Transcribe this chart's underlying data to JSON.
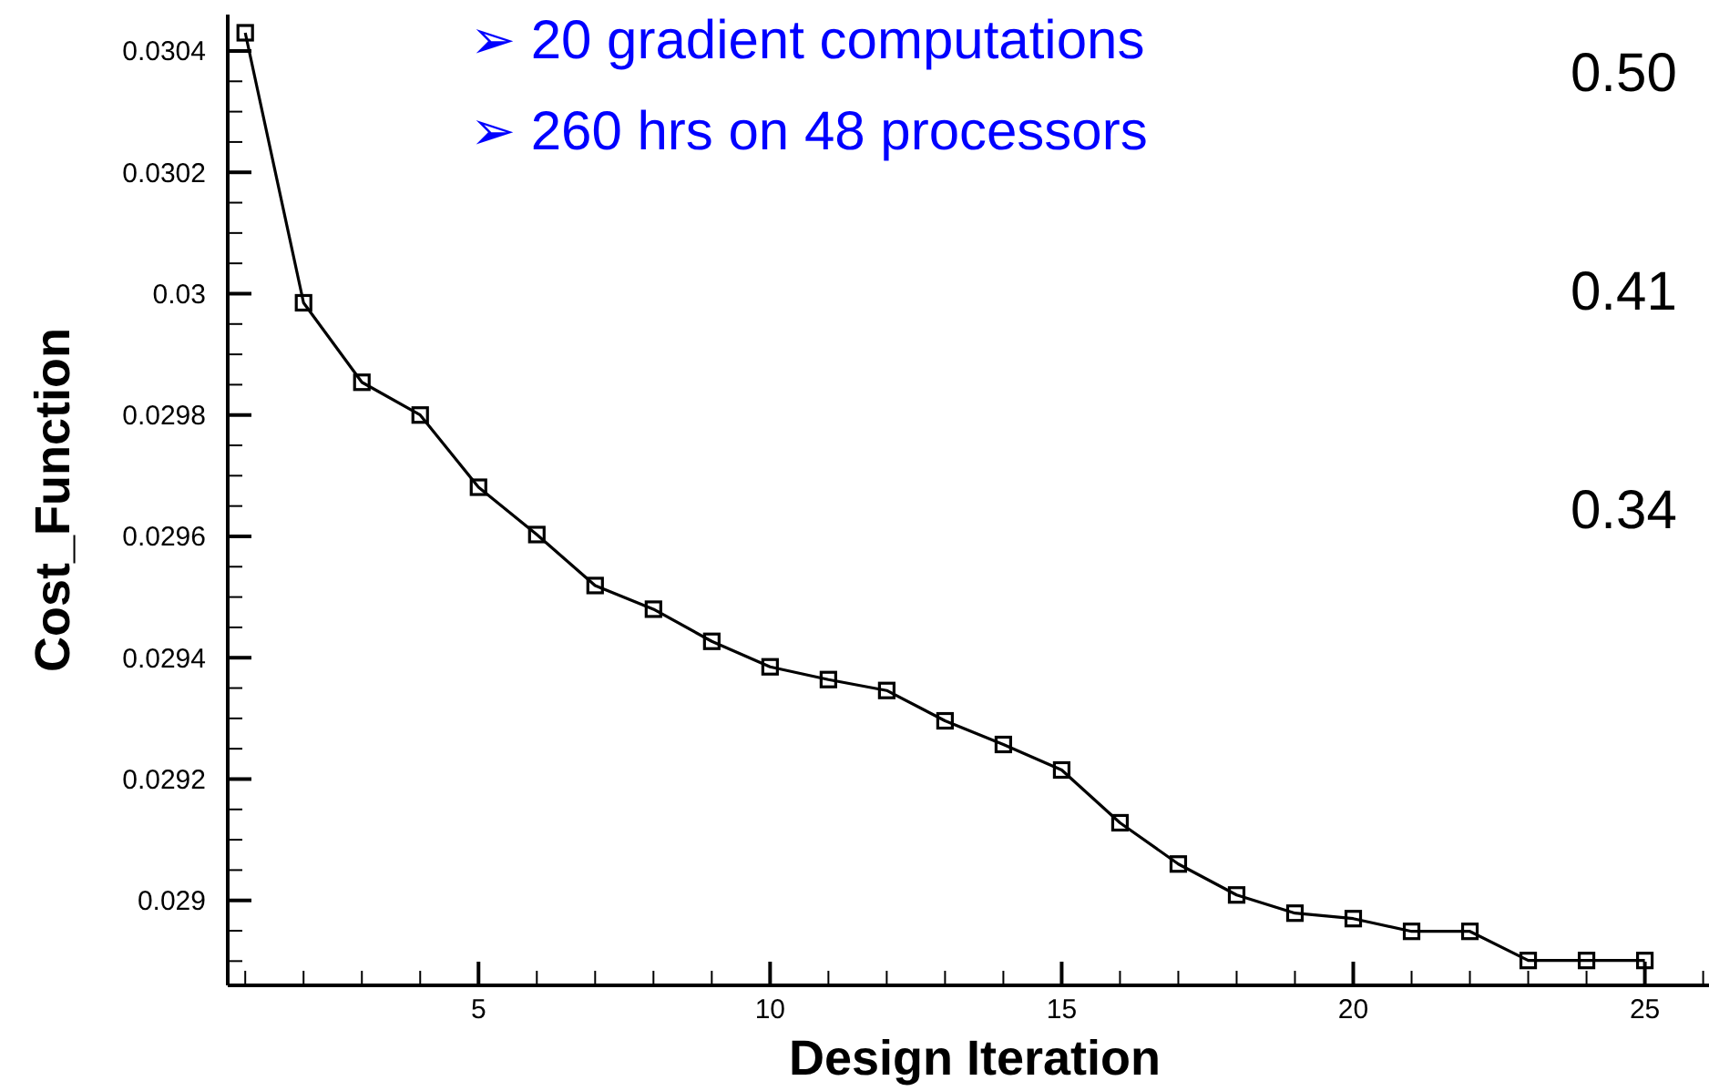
{
  "chart_data": {
    "type": "line",
    "xlabel": "Design Iteration",
    "ylabel": "Cost_Function",
    "annotations": [
      "➢ 20 gradient computations",
      "➢ 260 hrs on 48 processors",
      "0.50",
      "0.41",
      "0.34"
    ],
    "x": [
      1,
      2,
      3,
      4,
      5,
      6,
      7,
      8,
      9,
      10,
      11,
      12,
      13,
      14,
      15,
      16,
      17,
      18,
      19,
      20,
      21,
      22,
      23,
      24,
      25
    ],
    "series": [
      {
        "color": "#000000",
        "values": [
          0.03043,
          0.029985,
          0.029854,
          0.0298,
          0.029681,
          0.029603,
          0.029519,
          0.02948,
          0.029427,
          0.029385,
          0.029364,
          0.029346,
          0.029296,
          0.029257,
          0.029215,
          0.029128,
          0.02906,
          0.029009,
          0.028979,
          0.02897,
          0.028949,
          0.028949,
          0.028901,
          0.028901,
          0.028901
        ]
      }
    ],
    "marker": "square",
    "line_style": "solid",
    "grid": false,
    "xlim": [
      0.7,
      26.1
    ],
    "ylim": [
      0.02886,
      0.03046
    ],
    "xticks": [
      {
        "value": 1,
        "label": null
      },
      {
        "value": 2,
        "label": null
      },
      {
        "value": 3,
        "label": null
      },
      {
        "value": 4,
        "label": null
      },
      5,
      {
        "value": 6,
        "label": null
      },
      {
        "value": 7,
        "label": null
      },
      {
        "value": 8,
        "label": null
      },
      {
        "value": 9,
        "label": null
      },
      10,
      {
        "value": 11,
        "label": null
      },
      {
        "value": 12,
        "label": null
      },
      {
        "value": 13,
        "label": null
      },
      {
        "value": 14,
        "label": null
      },
      15,
      {
        "value": 16,
        "label": null
      },
      {
        "value": 17,
        "label": null
      },
      {
        "value": 18,
        "label": null
      },
      {
        "value": 19,
        "label": null
      },
      20,
      {
        "value": 21,
        "label": null
      },
      {
        "value": 22,
        "label": null
      },
      {
        "value": 23,
        "label": null
      },
      {
        "value": 24,
        "label": null
      },
      25,
      {
        "value": 26,
        "label": null
      }
    ],
    "yticks": [
      {
        "value": 0.0289,
        "label": null
      },
      {
        "value": 0.02895,
        "label": null
      },
      0.029,
      {
        "value": 0.02905,
        "label": null
      },
      {
        "value": 0.0291,
        "label": null
      },
      {
        "value": 0.02915,
        "label": null
      },
      0.0292,
      {
        "value": 0.02925,
        "label": null
      },
      {
        "value": 0.0293,
        "label": null
      },
      {
        "value": 0.02935,
        "label": null
      },
      0.0294,
      {
        "value": 0.02945,
        "label": null
      },
      {
        "value": 0.0295,
        "label": null
      },
      {
        "value": 0.02955,
        "label": null
      },
      0.0296,
      {
        "value": 0.02965,
        "label": null
      },
      {
        "value": 0.0297,
        "label": null
      },
      {
        "value": 0.02975,
        "label": null
      },
      0.0298,
      {
        "value": 0.02985,
        "label": null
      },
      {
        "value": 0.0299,
        "label": null
      },
      {
        "value": 0.02995,
        "label": null
      },
      {
        "value": 0.03,
        "label": "0.03"
      },
      {
        "value": 0.03005,
        "label": null
      },
      {
        "value": 0.0301,
        "label": null
      },
      {
        "value": 0.03015,
        "label": null
      },
      0.0302,
      {
        "value": 0.03025,
        "label": null
      },
      {
        "value": 0.0303,
        "label": null
      },
      {
        "value": 0.03035,
        "label": null
      },
      0.0304
    ]
  }
}
